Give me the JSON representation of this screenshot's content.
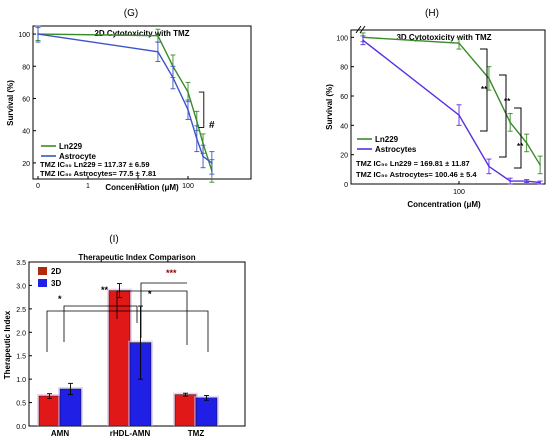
{
  "panels": {
    "G": "(G)",
    "H": "(H)",
    "I": "(I)"
  },
  "chart_data": [
    {
      "type": "line",
      "title": "2D Cytotoxicity with TMZ",
      "xlabel": "Concentration (μM)",
      "ylabel": "Survival (%)",
      "xscale": "log",
      "xlim": [
        0,
        300
      ],
      "ylim": [
        10,
        105
      ],
      "xticks": [
        0,
        1,
        10,
        100
      ],
      "yticks": [
        20,
        40,
        60,
        80,
        100
      ],
      "grid": false,
      "legend_position": "lower-left",
      "series": [
        {
          "name": "Ln229",
          "color": "#3a8a2a",
          "x": [
            0,
            25,
            50,
            100,
            150,
            200,
            300
          ],
          "y": [
            100,
            99,
            80,
            64,
            46,
            32,
            15
          ],
          "err": [
            4,
            4,
            7,
            6,
            6,
            6,
            7
          ]
        },
        {
          "name": "Astrocyte",
          "color": "#3b55c8",
          "x": [
            0,
            25,
            50,
            100,
            150,
            200,
            300
          ],
          "y": [
            100,
            89,
            73,
            53,
            35,
            24,
            20
          ],
          "err": [
            5,
            6,
            7,
            6,
            8,
            7,
            7
          ]
        }
      ],
      "annotations": {
        "sig": "#",
        "ic50_ln229": "TMZ IC₅₀ Ln229 = 117.37 ± 6.59",
        "ic50_astro": "TMZ IC₅₀ Astrocytes= 77.5 ± 7.81"
      }
    },
    {
      "type": "line",
      "title": "3D Cytotoxicity with TMZ",
      "xlabel": "Concentration (μM)",
      "ylabel": "Survival (%)",
      "xscale": "log",
      "xlim": [
        0,
        400
      ],
      "ylim": [
        0,
        105
      ],
      "xticks": [
        100
      ],
      "yticks": [
        0,
        20,
        40,
        60,
        80,
        100
      ],
      "grid": false,
      "legend_position": "center-left",
      "series": [
        {
          "name": "Ln229",
          "color": "#3a8a2a",
          "x": [
            0,
            100,
            150,
            200,
            250,
            300
          ],
          "y": [
            100,
            96,
            72,
            42,
            28,
            13
          ],
          "err": [
            3,
            4,
            8,
            6,
            6,
            6
          ]
        },
        {
          "name": "Astrocytes",
          "color": "#5a2ee0",
          "x": [
            0,
            100,
            150,
            200,
            250,
            300
          ],
          "y": [
            98,
            47,
            12,
            2,
            2,
            1
          ],
          "err": [
            3,
            7,
            5,
            2,
            1,
            1
          ]
        }
      ],
      "annotations": {
        "sig": [
          "**",
          "**",
          "**"
        ],
        "ic50_ln229": "TMZ IC₅₀ Ln229 = 169.81 ± 11.87",
        "ic50_astro": "TMZ IC₅₀ Astrocytes= 100.46 ± 5.4"
      }
    },
    {
      "type": "bar",
      "title": "Therapeutic Index Comparison",
      "xlabel": "",
      "ylabel": "Therapeutic Index",
      "categories": [
        "AMN",
        "rHDL-AMN",
        "TMZ"
      ],
      "ylim": [
        0,
        3.5
      ],
      "yticks": [
        0.0,
        0.5,
        1.0,
        1.5,
        2.0,
        2.5,
        3.0,
        3.5
      ],
      "grid": false,
      "legend_position": "top-left",
      "series": [
        {
          "name": "2D",
          "color": "#e01818",
          "values": [
            0.64,
            2.89,
            0.67
          ],
          "err": [
            0.05,
            0.15,
            0.03
          ]
        },
        {
          "name": "3D",
          "color": "#1f1fe6",
          "values": [
            0.79,
            1.78,
            0.6
          ],
          "err": [
            0.12,
            0.78,
            0.05
          ]
        }
      ],
      "annotations": {
        "sig": [
          "*",
          "**",
          "*",
          "***"
        ]
      }
    }
  ]
}
